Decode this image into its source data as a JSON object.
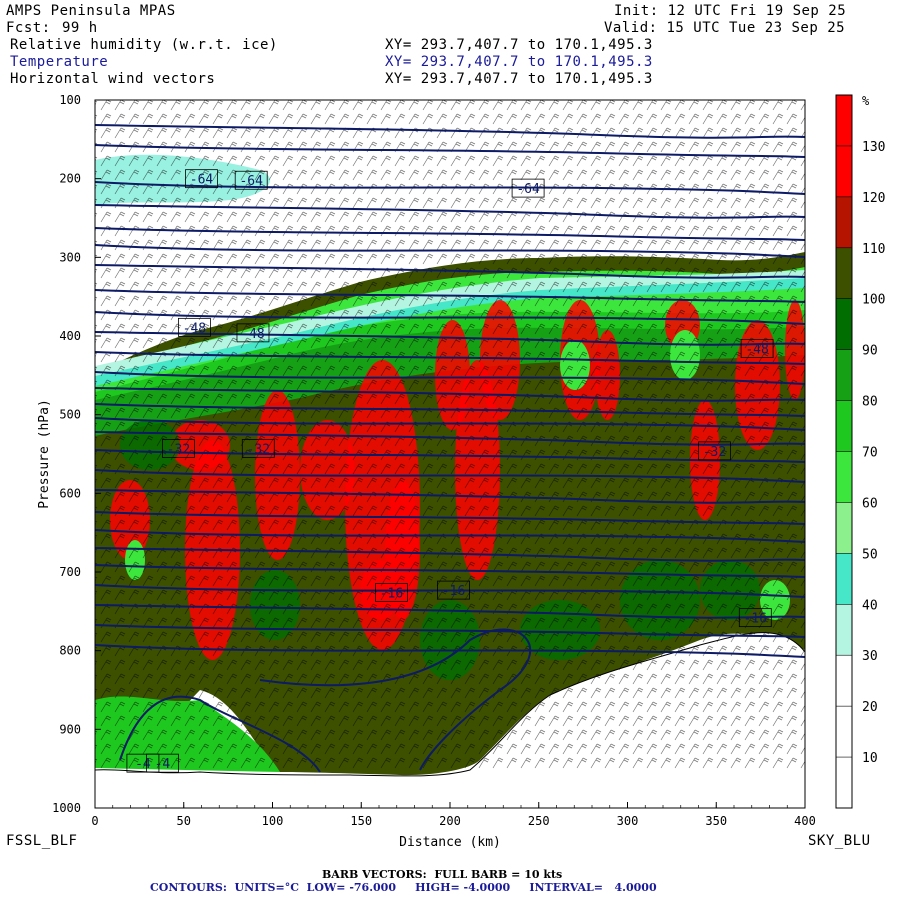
{
  "header": {
    "model": "AMPS Peninsula MPAS",
    "fcst_label": "Fcst:",
    "fcst_value": "99 h",
    "init": "Init: 12 UTC Fri 19 Sep 25",
    "valid": "Valid: 15 UTC Tue 23 Sep 25",
    "field1": "Relative humidity (w.r.t. ice)",
    "field2": "Temperature",
    "field3": "Horizontal wind vectors",
    "xy": "XY= 293.7,407.7 to 170.1,495.3"
  },
  "footer": {
    "left_station": "FSSL_BLF",
    "right_station": "SKY_BLU",
    "barb": "BARB VECTORS:  FULL BARB = 10 kts",
    "contours": "CONTOURS:  UNITS=°C  LOW= -76.000     HIGH= -4.0000     INTERVAL=   4.0000"
  },
  "colors": {
    "contour": "#0d1a66",
    "terrain": "#ffffff"
  },
  "chart_data": {
    "type": "heatmap",
    "xlabel": "Distance (km)",
    "ylabel": "Pressure (hPa)",
    "xlim": [
      0,
      400
    ],
    "ylim": [
      1000,
      100
    ],
    "x_ticks": [
      "0",
      "50",
      "100",
      "150",
      "200",
      "250",
      "300",
      "350",
      "400"
    ],
    "y_ticks": [
      "100",
      "200",
      "300",
      "400",
      "500",
      "600",
      "700",
      "800",
      "900",
      "1000"
    ],
    "colorbar": {
      "unit": "%",
      "labels": [
        "10",
        "20",
        "30",
        "40",
        "50",
        "60",
        "70",
        "80",
        "90",
        "100",
        "110",
        "120",
        "130"
      ],
      "colors": [
        "#ffffff",
        "#ffffff",
        "#ffffff",
        "#b4f5e1",
        "#46e6c8",
        "#8cf08c",
        "#3ce63c",
        "#1fc81f",
        "#16a016",
        "#006e00",
        "#3c5000",
        "#b41400",
        "#ff0000",
        "#ff0000"
      ]
    },
    "contour_labels": [
      {
        "text": "-64",
        "x": 60,
        "p": 200
      },
      {
        "text": "-64",
        "x": 88,
        "p": 202
      },
      {
        "text": "-64",
        "x": 244,
        "p": 212
      },
      {
        "text": "-48",
        "x": 56,
        "p": 389
      },
      {
        "text": "-48",
        "x": 89,
        "p": 396
      },
      {
        "text": "-48",
        "x": 373,
        "p": 416
      },
      {
        "text": "-32",
        "x": 47,
        "p": 543
      },
      {
        "text": "-32",
        "x": 92,
        "p": 543
      },
      {
        "text": "-32",
        "x": 349,
        "p": 546
      },
      {
        "text": "-16",
        "x": 167,
        "p": 726
      },
      {
        "text": "-16",
        "x": 202,
        "p": 723
      },
      {
        "text": "-16",
        "x": 372,
        "p": 758
      },
      {
        "text": "-4",
        "x": 27,
        "p": 943
      },
      {
        "text": "-4",
        "x": 38,
        "p": 943
      }
    ]
  }
}
